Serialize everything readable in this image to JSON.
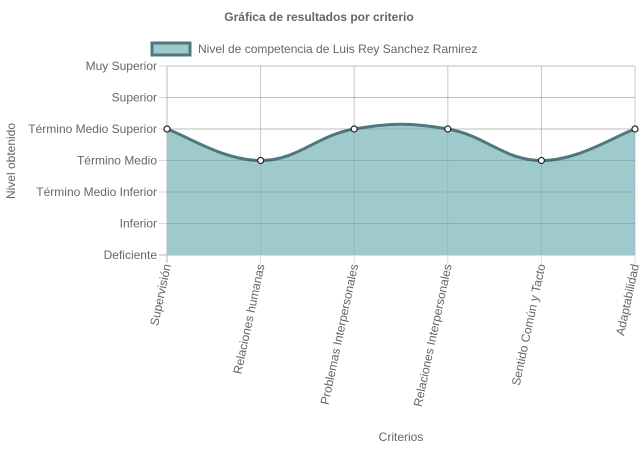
{
  "chart_data": {
    "type": "area",
    "title": "Gráfica de resultados por criterio",
    "xlabel": "Criterios",
    "ylabel": "Nivel obtenido",
    "y_levels": [
      "Deficiente",
      "Inferior",
      "Término Medio Inferior",
      "Término Medio",
      "Término Medio Superior",
      "Superior",
      "Muy Superior"
    ],
    "categories": [
      "Supervisión",
      "Relaciones humanas",
      "Problemas Interpersonales",
      "Relaciones Interpersonales",
      "Sentido Común y Tacto",
      "Adaptabilidad"
    ],
    "series": [
      {
        "name": "Nivel de competencia de Luis Rey Sanchez Ramirez",
        "values": [
          4,
          3,
          4,
          4,
          3,
          4
        ],
        "value_labels": [
          "Término Medio Superior",
          "Término Medio",
          "Término Medio Superior",
          "Término Medio Superior",
          "Término Medio",
          "Término Medio Superior"
        ]
      }
    ],
    "ylim": [
      0,
      6
    ],
    "grid": true,
    "legend_position": "top",
    "colors": {
      "fill": "#9fcacd",
      "line": "#4e787e",
      "point_fill": "#ffffff",
      "point_stroke": "#222222",
      "grid": "#d9d9d9"
    }
  }
}
